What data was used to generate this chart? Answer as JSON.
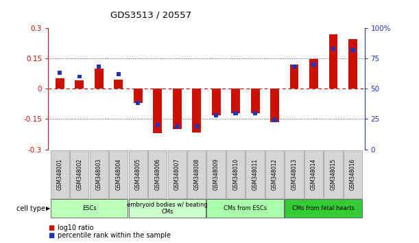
{
  "title": "GDS3513 / 20557",
  "samples": [
    "GSM348001",
    "GSM348002",
    "GSM348003",
    "GSM348004",
    "GSM348005",
    "GSM348006",
    "GSM348007",
    "GSM348008",
    "GSM348009",
    "GSM348010",
    "GSM348011",
    "GSM348012",
    "GSM348013",
    "GSM348014",
    "GSM348015",
    "GSM348016"
  ],
  "log10_ratio": [
    0.05,
    0.04,
    0.1,
    0.045,
    -0.07,
    -0.22,
    -0.2,
    -0.215,
    -0.13,
    -0.12,
    -0.12,
    -0.165,
    0.12,
    0.145,
    0.27,
    0.245
  ],
  "percentile_rank": [
    63,
    60,
    68,
    62,
    38,
    20,
    19,
    19,
    28,
    30,
    30,
    24,
    68,
    70,
    83,
    82
  ],
  "ylim_left": [
    -0.3,
    0.3
  ],
  "ylim_right": [
    0,
    100
  ],
  "yticks_left": [
    -0.3,
    -0.15,
    0.0,
    0.15,
    0.3
  ],
  "ytick_labels_left": [
    "-0.3",
    "-0.15",
    "0",
    "0.15",
    "0.3"
  ],
  "yticks_right": [
    0,
    25,
    50,
    75,
    100
  ],
  "ytick_labels_right": [
    "0",
    "25",
    "50",
    "75",
    "100%"
  ],
  "cell_groups": [
    {
      "label": "ESCs",
      "start": 0,
      "end": 3,
      "color": "#bbffbb"
    },
    {
      "label": "embryoid bodies w/ beating\nCMs",
      "start": 4,
      "end": 7,
      "color": "#ccffcc"
    },
    {
      "label": "CMs from ESCs",
      "start": 8,
      "end": 11,
      "color": "#aaffaa"
    },
    {
      "label": "CMs from fetal hearts",
      "start": 12,
      "end": 15,
      "color": "#33cc33"
    }
  ],
  "bar_color": "#cc1100",
  "blue_color": "#2233bb",
  "zero_line_color": "#cc1100",
  "left_axis_color": "#cc1100",
  "right_axis_color": "#2233bb",
  "dotted_line_color": "#444444",
  "sample_box_color": "#d5d5d5",
  "sample_box_edge": "#999999"
}
